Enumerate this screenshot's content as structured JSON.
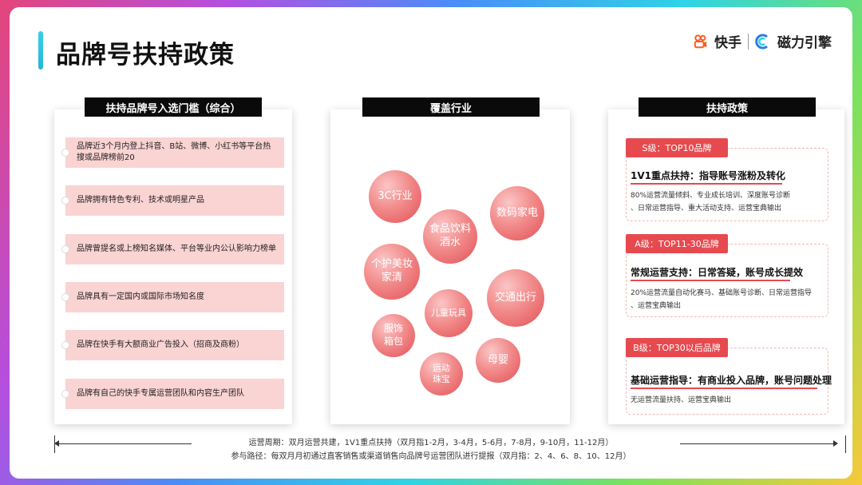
{
  "header": {
    "title": "品牌号扶持政策",
    "logo_kuaishou": "快手",
    "logo_cili": "磁力引擎"
  },
  "left_panel": {
    "title": "扶持品牌号入选门槛（综合）",
    "items": [
      "品牌近3个月内登上抖音、B站、微博、小红书等平台热搜或品牌榜前20",
      "品牌拥有特色专利、技术或明星产品",
      "品牌曾提名或上榜知名媒体、平台等业内公认影响力榜单",
      "品牌具有一定国内或国际市场知名度",
      "品牌在快手有大额商业广告投入（招商及商粉）",
      "品牌有自己的快手专属运营团队和内容生产团队"
    ]
  },
  "middle_panel": {
    "title": "覆盖行业",
    "bubbles": {
      "b1": "3C行业",
      "b2": "数码家电",
      "b3_l1": "食品饮料",
      "b3_l2": "酒水",
      "b4_l1": "个护美妆",
      "b4_l2": "家清",
      "b5": "交通出行",
      "b6": "儿童玩具",
      "b7_l1": "服饰",
      "b7_l2": "箱包",
      "b8": "母婴",
      "b9_l1": "运动",
      "b9_l2": "珠宝"
    }
  },
  "right_panel": {
    "title": "扶持政策",
    "tiers": [
      {
        "badge": "S级：TOP10品牌",
        "head": "1V1重点扶持：指导账号涨粉及转化",
        "body_l1": "80%运营流量倾斜、专业成长培训、深度账号诊断",
        "body_l2": "、日常运营指导、重大活动支持、运营宝典输出"
      },
      {
        "badge": "A级：TOP11-30品牌",
        "head": "常规运营支持：日常答疑，账号成长提效",
        "body_l1": "20%运营流量自动化赛马、基础账号诊断、日常运营指导",
        "body_l2": "、运营宝典输出"
      },
      {
        "badge": "B级：TOP30以后品牌",
        "head": "基础运营指导：有商业投入品牌，账号问题处理",
        "body_l1": "无运营流量扶持、运营宝典输出",
        "body_l2": ""
      }
    ]
  },
  "footer": {
    "line1": "运营周期：双月运营共建，1V1重点扶持（双月指1-2月，3-4月，5-6月，7-8月，9-10月，11-12月）",
    "line2": "参与路径：每双月月初通过直客销售或渠道销售向品牌号运营团队进行提报（双月指：2、4、6、8、10、12月）"
  },
  "colors": {
    "accent": "#e64a4f",
    "item_bg": "#fad3d3",
    "title_bar": "#34d1e8"
  }
}
